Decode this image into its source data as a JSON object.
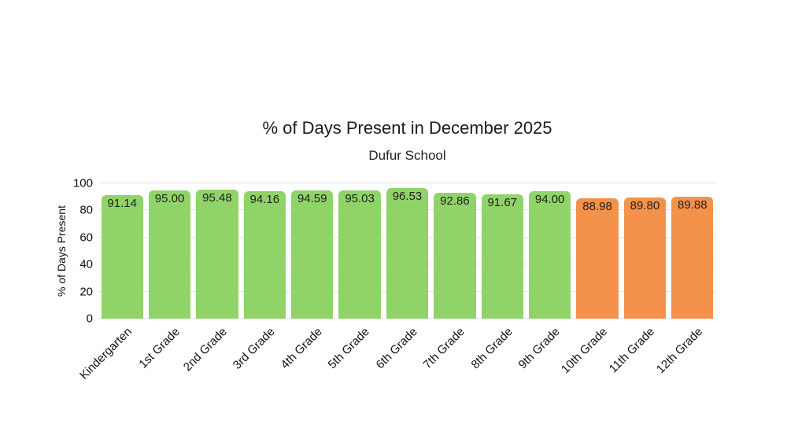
{
  "chart_data": {
    "type": "bar",
    "title": "% of Days Present in December 2025",
    "subtitle": "Dufur School",
    "ylabel": "% of Days Present",
    "xlabel": "",
    "ylim": [
      0,
      100
    ],
    "yticks": [
      0,
      20,
      40,
      60,
      80,
      100
    ],
    "grid": true,
    "legend_position": "none",
    "categories": [
      "Kindergarten",
      "1st Grade",
      "2nd Grade",
      "3rd Grade",
      "4th Grade",
      "5th Grade",
      "6th Grade",
      "7th Grade",
      "8th Grade",
      "9th Grade",
      "10th Grade",
      "11th Grade",
      "12th Grade"
    ],
    "values": [
      91.14,
      95.0,
      95.48,
      94.16,
      94.59,
      95.03,
      96.53,
      92.86,
      91.67,
      94.0,
      88.98,
      89.8,
      89.88
    ],
    "bar_colors": [
      "#90d469",
      "#90d469",
      "#90d469",
      "#90d469",
      "#90d469",
      "#90d469",
      "#90d469",
      "#90d469",
      "#90d469",
      "#90d469",
      "#f4924b",
      "#f4924b",
      "#f4924b"
    ],
    "colors": {
      "green": "#90d469",
      "orange": "#f4924b",
      "gridline": "#e7e7e7",
      "text": "#111111"
    }
  }
}
